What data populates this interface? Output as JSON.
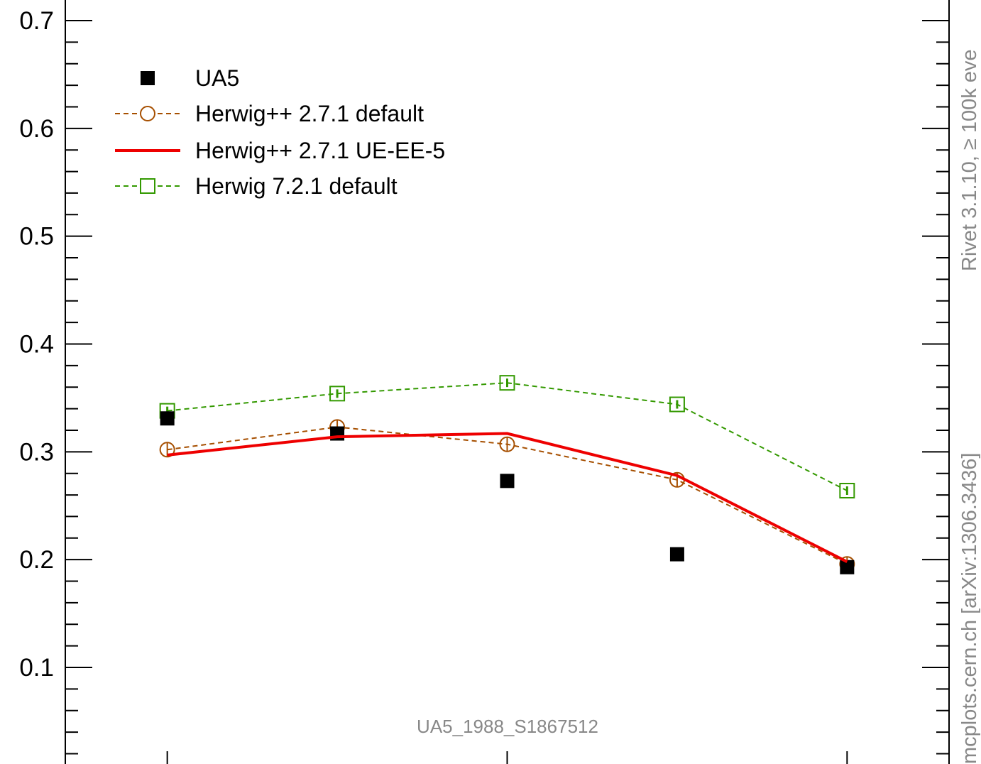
{
  "chart_data": {
    "type": "scatter",
    "analysis_label": "UA5_1988_S1867512",
    "side_labels": {
      "upper": "Rivet 3.1.10, ≥ 100k eve",
      "lower": "mcplots.cern.ch [arXiv:1306.3436]"
    },
    "y_tick_labels": [
      "0.1",
      "0.2",
      "0.3",
      "0.4",
      "0.5",
      "0.6",
      "0.7"
    ],
    "y_ticks": [
      0.1,
      0.2,
      0.3,
      0.4,
      0.5,
      0.6,
      0.7
    ],
    "ylim": [
      0.025,
      0.72
    ],
    "xlim": [
      0.4,
      5.6
    ],
    "x_major_ticks": [
      1,
      3,
      5
    ],
    "grid": false,
    "legend_position": "top-left",
    "x": [
      1,
      2,
      3,
      4,
      5
    ],
    "series": [
      {
        "name": "UA5",
        "style": "data-squares",
        "color": "#000000",
        "values": [
          0.331,
          0.317,
          0.273,
          0.205,
          0.193
        ]
      },
      {
        "name": "Herwig++ 2.7.1 default",
        "style": "dashed-circles",
        "color": "#a64f00",
        "values": [
          0.302,
          0.323,
          0.307,
          0.274,
          0.196
        ]
      },
      {
        "name": "Herwig++ 2.7.1 UE-EE-5",
        "style": "solid",
        "color": "#ee0000",
        "values": [
          0.297,
          0.314,
          0.317,
          0.278,
          0.198
        ]
      },
      {
        "name": "Herwig 7.2.1 default",
        "style": "dashed-squares",
        "color": "#339900",
        "values": [
          0.338,
          0.354,
          0.364,
          0.344,
          0.264
        ]
      }
    ]
  }
}
